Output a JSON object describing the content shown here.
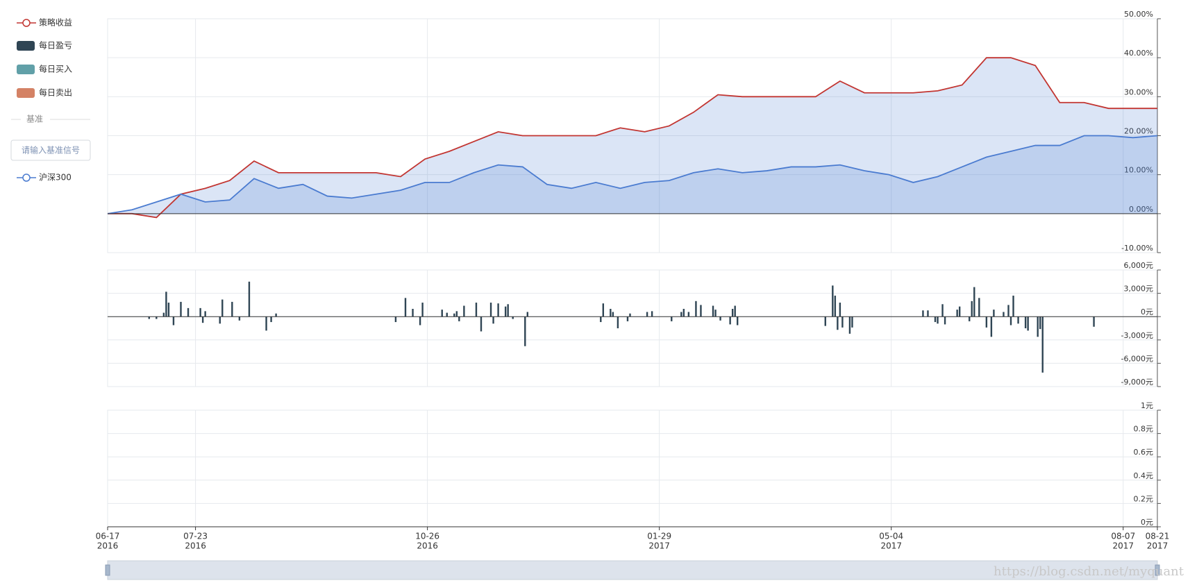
{
  "benchmark_section": {
    "title": "基准",
    "input_placeholder": "请输入基准信号"
  },
  "watermark": "https://blog.csdn.net/myquant",
  "chart_data": [
    {
      "type": "line",
      "x": [
        "2016-06-17",
        "2016-06-27",
        "2016-07-07",
        "2016-07-17",
        "2016-07-27",
        "2016-08-06",
        "2016-08-16",
        "2016-08-26",
        "2016-09-05",
        "2016-09-15",
        "2016-09-25",
        "2016-10-05",
        "2016-10-15",
        "2016-10-25",
        "2016-11-04",
        "2016-11-14",
        "2016-11-24",
        "2016-12-04",
        "2016-12-14",
        "2016-12-24",
        "2017-01-03",
        "2017-01-13",
        "2017-01-23",
        "2017-02-02",
        "2017-02-12",
        "2017-02-22",
        "2017-03-04",
        "2017-03-14",
        "2017-03-24",
        "2017-04-03",
        "2017-04-13",
        "2017-04-23",
        "2017-05-03",
        "2017-05-13",
        "2017-05-23",
        "2017-06-02",
        "2017-06-12",
        "2017-06-22",
        "2017-07-02",
        "2017-07-12",
        "2017-07-22",
        "2017-08-01",
        "2017-08-11",
        "2017-08-21"
      ],
      "xlim": [
        "2016-06-17",
        "2017-08-21"
      ],
      "xticks": [
        {
          "value": "2016-06-17",
          "label": [
            "06-17",
            "2016"
          ]
        },
        {
          "value": "2016-07-23",
          "label": [
            "07-23",
            "2016"
          ]
        },
        {
          "value": "2016-10-26",
          "label": [
            "10-26",
            "2016"
          ]
        },
        {
          "value": "2017-01-29",
          "label": [
            "01-29",
            "2017"
          ]
        },
        {
          "value": "2017-05-04",
          "label": [
            "05-04",
            "2017"
          ]
        },
        {
          "value": "2017-08-07",
          "label": [
            "08-07",
            "2017"
          ]
        },
        {
          "value": "2017-08-21",
          "label": [
            "08-21",
            "2017"
          ]
        }
      ],
      "ylim": [
        -10,
        50
      ],
      "yticks": [
        {
          "value": -10,
          "label": "-10.00%"
        },
        {
          "value": 0,
          "label": "0.00%"
        },
        {
          "value": 10,
          "label": "10.00%"
        },
        {
          "value": 20,
          "label": "20.00%"
        },
        {
          "value": 30,
          "label": "30.00%"
        },
        {
          "value": 40,
          "label": "40.00%"
        },
        {
          "value": 50,
          "label": "50.00%"
        }
      ],
      "grid": true,
      "series": [
        {
          "name": "策略收益",
          "color": "#c23531",
          "values": [
            0,
            0,
            -1,
            5,
            6.5,
            8.5,
            13.5,
            10.5,
            10.5,
            10.5,
            10.5,
            10.5,
            9.5,
            14,
            16,
            18.5,
            21,
            20,
            20,
            20,
            20,
            22,
            21,
            22.5,
            26,
            30.5,
            30,
            30,
            30,
            30,
            34,
            31,
            31,
            31,
            31.5,
            33,
            40,
            40,
            38,
            28.5,
            28.5,
            27,
            27,
            27
          ]
        },
        {
          "name": "沪深300",
          "color": "#4a7bd0",
          "values": [
            0,
            1,
            3,
            5,
            3,
            3.5,
            9,
            6.5,
            7.5,
            4.5,
            4,
            5,
            6,
            8,
            8,
            10.5,
            12.5,
            12,
            7.5,
            6.5,
            8,
            6.5,
            8,
            8.5,
            10.5,
            11.5,
            10.5,
            11,
            12,
            12,
            12.5,
            11,
            10,
            8,
            9.5,
            12,
            14.5,
            16,
            17.5,
            17.5,
            20,
            20,
            19.5,
            20
          ]
        }
      ]
    },
    {
      "type": "bar",
      "x": [
        "2016-07-04",
        "2016-07-07",
        "2016-07-10",
        "2016-07-11",
        "2016-07-12",
        "2016-07-14",
        "2016-07-17",
        "2016-07-20",
        "2016-07-25",
        "2016-07-26",
        "2016-07-27",
        "2016-08-02",
        "2016-08-03",
        "2016-08-07",
        "2016-08-10",
        "2016-08-14",
        "2016-08-21",
        "2016-08-23",
        "2016-08-25",
        "2016-10-13",
        "2016-10-17",
        "2016-10-20",
        "2016-10-23",
        "2016-10-24",
        "2016-11-01",
        "2016-11-03",
        "2016-11-06",
        "2016-11-07",
        "2016-11-08",
        "2016-11-10",
        "2016-11-15",
        "2016-11-17",
        "2016-11-21",
        "2016-11-22",
        "2016-11-24",
        "2016-11-27",
        "2016-11-28",
        "2016-11-30",
        "2016-12-05",
        "2016-12-06",
        "2017-01-05",
        "2017-01-06",
        "2017-01-09",
        "2017-01-10",
        "2017-01-12",
        "2017-01-16",
        "2017-01-17",
        "2017-01-24",
        "2017-01-26",
        "2017-02-03",
        "2017-02-07",
        "2017-02-08",
        "2017-02-10",
        "2017-02-13",
        "2017-02-15",
        "2017-02-20",
        "2017-02-21",
        "2017-02-23",
        "2017-02-27",
        "2017-02-28",
        "2017-03-01",
        "2017-03-02",
        "2017-04-07",
        "2017-04-10",
        "2017-04-11",
        "2017-04-12",
        "2017-04-13",
        "2017-04-14",
        "2017-04-17",
        "2017-04-18",
        "2017-05-17",
        "2017-05-19",
        "2017-05-22",
        "2017-05-23",
        "2017-05-25",
        "2017-05-26",
        "2017-05-31",
        "2017-06-01",
        "2017-06-05",
        "2017-06-06",
        "2017-06-07",
        "2017-06-09",
        "2017-06-12",
        "2017-06-14",
        "2017-06-15",
        "2017-06-19",
        "2017-06-21",
        "2017-06-22",
        "2017-06-23",
        "2017-06-25",
        "2017-06-28",
        "2017-06-29",
        "2017-07-03",
        "2017-07-04",
        "2017-07-05",
        "2017-07-26"
      ],
      "ylim": [
        -9000,
        6000
      ],
      "yticks": [
        {
          "value": -9000,
          "label": "-9,000元"
        },
        {
          "value": -6000,
          "label": "-6,000元"
        },
        {
          "value": -3000,
          "label": "-3,000元"
        },
        {
          "value": 0,
          "label": "0元"
        },
        {
          "value": 3000,
          "label": "3,000元"
        },
        {
          "value": 6000,
          "label": "6,000元"
        }
      ],
      "grid": true,
      "series": [
        {
          "name": "每日盈亏",
          "color": "#2f4554",
          "values": [
            -300,
            -300,
            500,
            3200,
            1800,
            -1100,
            1900,
            1100,
            1100,
            -800,
            700,
            -900,
            2200,
            1900,
            -500,
            4500,
            -1800,
            -700,
            400,
            -700,
            2400,
            1000,
            -1100,
            1800,
            900,
            500,
            400,
            700,
            -600,
            1400,
            1800,
            -1900,
            1800,
            -900,
            1700,
            1300,
            1600,
            -300,
            -3800,
            600,
            -700,
            1700,
            1000,
            600,
            -1500,
            -600,
            400,
            600,
            700,
            -600,
            600,
            1000,
            600,
            2000,
            1500,
            1400,
            900,
            -500,
            -1000,
            1000,
            1400,
            -1100,
            -1200,
            4000,
            2700,
            -1700,
            1800,
            -1400,
            -2200,
            -1400,
            800,
            800,
            -700,
            -900,
            1600,
            -1000,
            900,
            1300,
            -600,
            2000,
            3800,
            2400,
            -1400,
            -2600,
            900,
            600,
            1500,
            -1100,
            2700,
            -900,
            -1500,
            -1800,
            -2600,
            -1600,
            -7200,
            -1300
          ]
        }
      ]
    },
    {
      "type": "bar",
      "x": [],
      "ylim": [
        0,
        1
      ],
      "yticks": [
        {
          "value": 0,
          "label": "0元"
        },
        {
          "value": 0.2,
          "label": "0.2元"
        },
        {
          "value": 0.4,
          "label": "0.4元"
        },
        {
          "value": 0.6,
          "label": "0.6元"
        },
        {
          "value": 0.8,
          "label": "0.8元"
        },
        {
          "value": 1,
          "label": "1元"
        }
      ],
      "grid": true,
      "series": [
        {
          "name": "每日买入",
          "color": "#61a0a8",
          "values": []
        },
        {
          "name": "每日卖出",
          "color": "#d48265",
          "values": []
        }
      ]
    }
  ]
}
